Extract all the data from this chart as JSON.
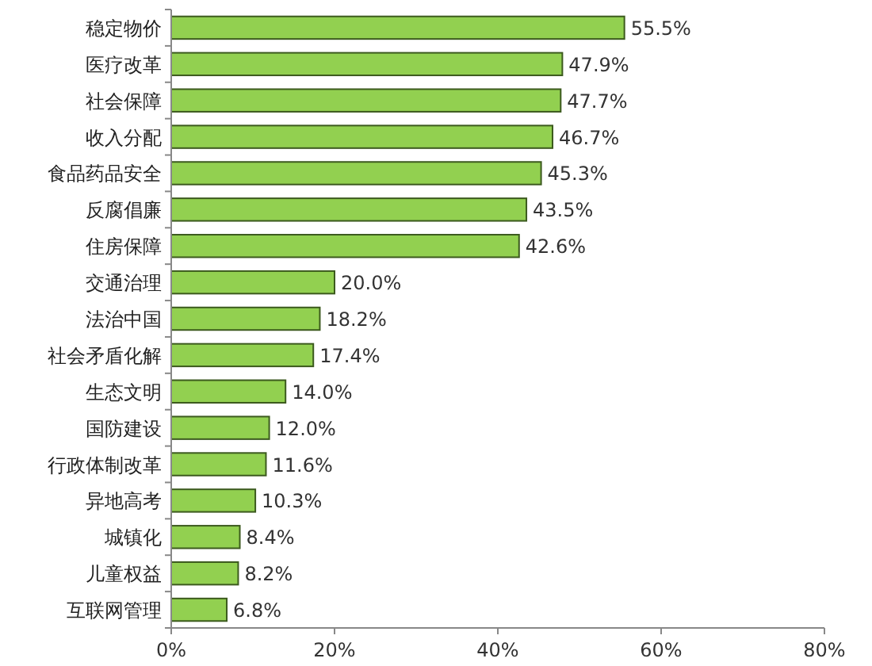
{
  "chart_data": {
    "type": "bar",
    "orientation": "horizontal",
    "categories": [
      "稳定物价",
      "医疗改革",
      "社会保障",
      "收入分配",
      "食品药品安全",
      "反腐倡廉",
      "住房保障",
      "交通治理",
      "法治中国",
      "社会矛盾化解",
      "生态文明",
      "国防建设",
      "行政体制改革",
      "异地高考",
      "城镇化",
      "儿童权益",
      "互联网管理"
    ],
    "values": [
      55.5,
      47.9,
      47.7,
      46.7,
      45.3,
      43.5,
      42.6,
      20.0,
      18.2,
      17.4,
      14.0,
      12.0,
      11.6,
      10.3,
      8.4,
      8.2,
      6.8
    ],
    "value_labels": [
      "55.5%",
      "47.9%",
      "47.7%",
      "46.7%",
      "45.3%",
      "43.5%",
      "42.6%",
      "20.0%",
      "18.2%",
      "17.4%",
      "14.0%",
      "12.0%",
      "11.6%",
      "10.3%",
      "8.4%",
      "8.2%",
      "6.8%"
    ],
    "color": "#92d050",
    "xlim": [
      0,
      80
    ],
    "xticks": [
      {
        "value": 0,
        "label": "0%"
      },
      {
        "value": 20,
        "label": "20%"
      },
      {
        "value": 40,
        "label": "40%"
      },
      {
        "value": 60,
        "label": "60%"
      },
      {
        "value": 80,
        "label": "80%"
      }
    ],
    "grid": false
  }
}
